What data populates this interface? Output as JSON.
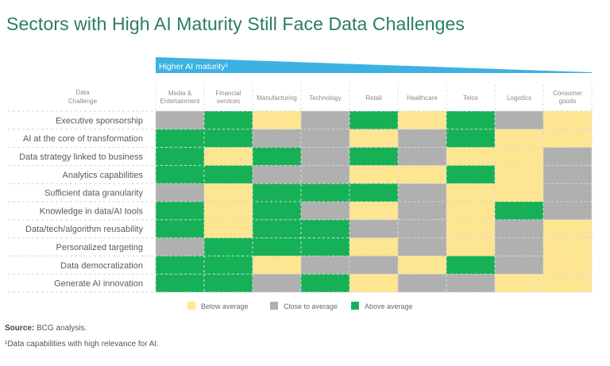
{
  "chart_data": {
    "type": "heatmap",
    "title": "Sectors with High AI Maturity Still Face Data Challenges",
    "maturity_arrow_label": "Higher AI maturity¹",
    "row_header": [
      "Data",
      "Challenge"
    ],
    "columns": [
      [
        "Media &",
        "Entertainment"
      ],
      [
        "Financial",
        "services"
      ],
      [
        "Manufacturing"
      ],
      [
        "Technology"
      ],
      [
        "Retail"
      ],
      [
        "Healthcare"
      ],
      [
        "Telco"
      ],
      [
        "Logistics"
      ],
      [
        "Consumer",
        "goods"
      ]
    ],
    "rows": [
      "Executive sponsorship",
      "AI at the core of transformation",
      "Data strategy linked to business",
      "Analytics capabilities",
      "Sufficient data granularity",
      "Knowledge in data/AI tools",
      "Data/tech/algorithm reusability",
      "Personalized targeting",
      "Data democratization",
      "Generate AI innovation"
    ],
    "values": [
      [
        "close",
        "above",
        "below",
        "close",
        "above",
        "below",
        "above",
        "close",
        "below"
      ],
      [
        "above",
        "above",
        "close",
        "close",
        "below",
        "close",
        "above",
        "below",
        "below"
      ],
      [
        "above",
        "below",
        "above",
        "close",
        "above",
        "close",
        "below",
        "below",
        "close"
      ],
      [
        "above",
        "above",
        "close",
        "close",
        "below",
        "below",
        "above",
        "below",
        "close"
      ],
      [
        "close",
        "below",
        "above",
        "above",
        "above",
        "close",
        "below",
        "below",
        "close"
      ],
      [
        "above",
        "below",
        "above",
        "close",
        "below",
        "close",
        "below",
        "above",
        "close"
      ],
      [
        "above",
        "below",
        "above",
        "above",
        "close",
        "close",
        "below",
        "close",
        "below"
      ],
      [
        "close",
        "above",
        "above",
        "above",
        "below",
        "close",
        "below",
        "close",
        "below"
      ],
      [
        "above",
        "above",
        "below",
        "close",
        "close",
        "below",
        "above",
        "close",
        "below"
      ],
      [
        "above",
        "above",
        "close",
        "above",
        "below",
        "close",
        "close",
        "below",
        "below"
      ]
    ],
    "legend": [
      {
        "key": "below",
        "label": "Below average",
        "color": "#fde591"
      },
      {
        "key": "close",
        "label": "Close to average",
        "color": "#b0b0b0"
      },
      {
        "key": "above",
        "label": "Above average",
        "color": "#16b157"
      }
    ],
    "legend_position": "bottom"
  },
  "colors": {
    "title": "#2a7d5c",
    "maturity_arrow": "#3eb1e3"
  },
  "footer": {
    "source_label": "Source:",
    "source_text": " BCG analysis.",
    "footnote": "¹Data capabilities with high relevance for AI."
  }
}
